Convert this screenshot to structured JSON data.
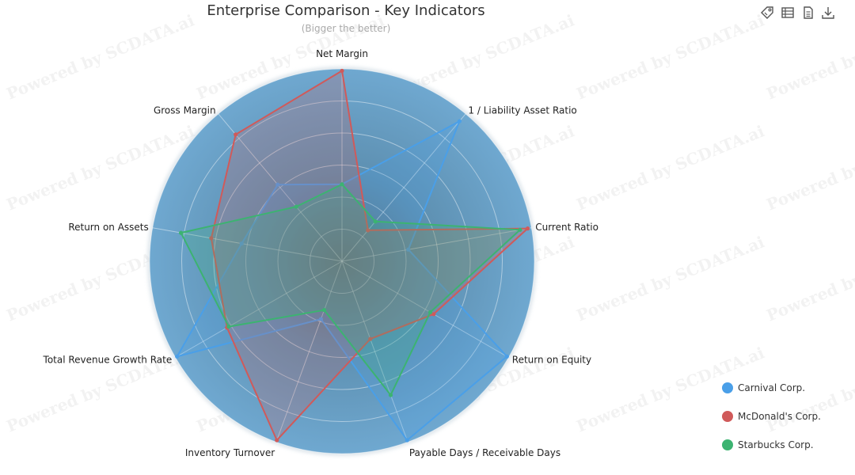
{
  "chart_data": {
    "type": "radar",
    "title": "Enterprise Comparison - Key Indicators",
    "subtitle": "(Bigger the better)",
    "indicators": [
      "Net Margin",
      "1 / Liability Asset Ratio",
      "Current Ratio",
      "Return on Equity",
      "Payable Days / Receivable Days",
      "Inventory Turnover",
      "Total Revenue Growth Rate",
      "Return on Assets",
      "Gross Margin"
    ],
    "max": 1.0,
    "rings": 6,
    "series": [
      {
        "name": "Carnival Corp.",
        "color": "#4a9fe8",
        "values": [
          0.4,
          0.95,
          0.35,
          0.99,
          0.99,
          0.32,
          0.99,
          0.53,
          0.52
        ]
      },
      {
        "name": "McDonald's Corp.",
        "color": "#d05a5a",
        "values": [
          0.99,
          0.21,
          0.98,
          0.55,
          0.43,
          0.99,
          0.69,
          0.69,
          0.86
        ]
      },
      {
        "name": "Starbucks Corp.",
        "color": "#3cb371",
        "values": [
          0.4,
          0.27,
          0.94,
          0.53,
          0.74,
          0.27,
          0.68,
          0.85,
          0.37
        ]
      }
    ],
    "legend_position": "bottom-right"
  },
  "watermark_text": "Powered by SCDATA.ai",
  "colors": {
    "radar_fill": "#6fa8d0",
    "ring": "#ffffff",
    "title": "#333333",
    "subtitle": "#aaaaaa"
  },
  "toolbar": [
    {
      "name": "tag-icon"
    },
    {
      "name": "data-view-icon"
    },
    {
      "name": "document-icon"
    },
    {
      "name": "download-icon"
    }
  ]
}
